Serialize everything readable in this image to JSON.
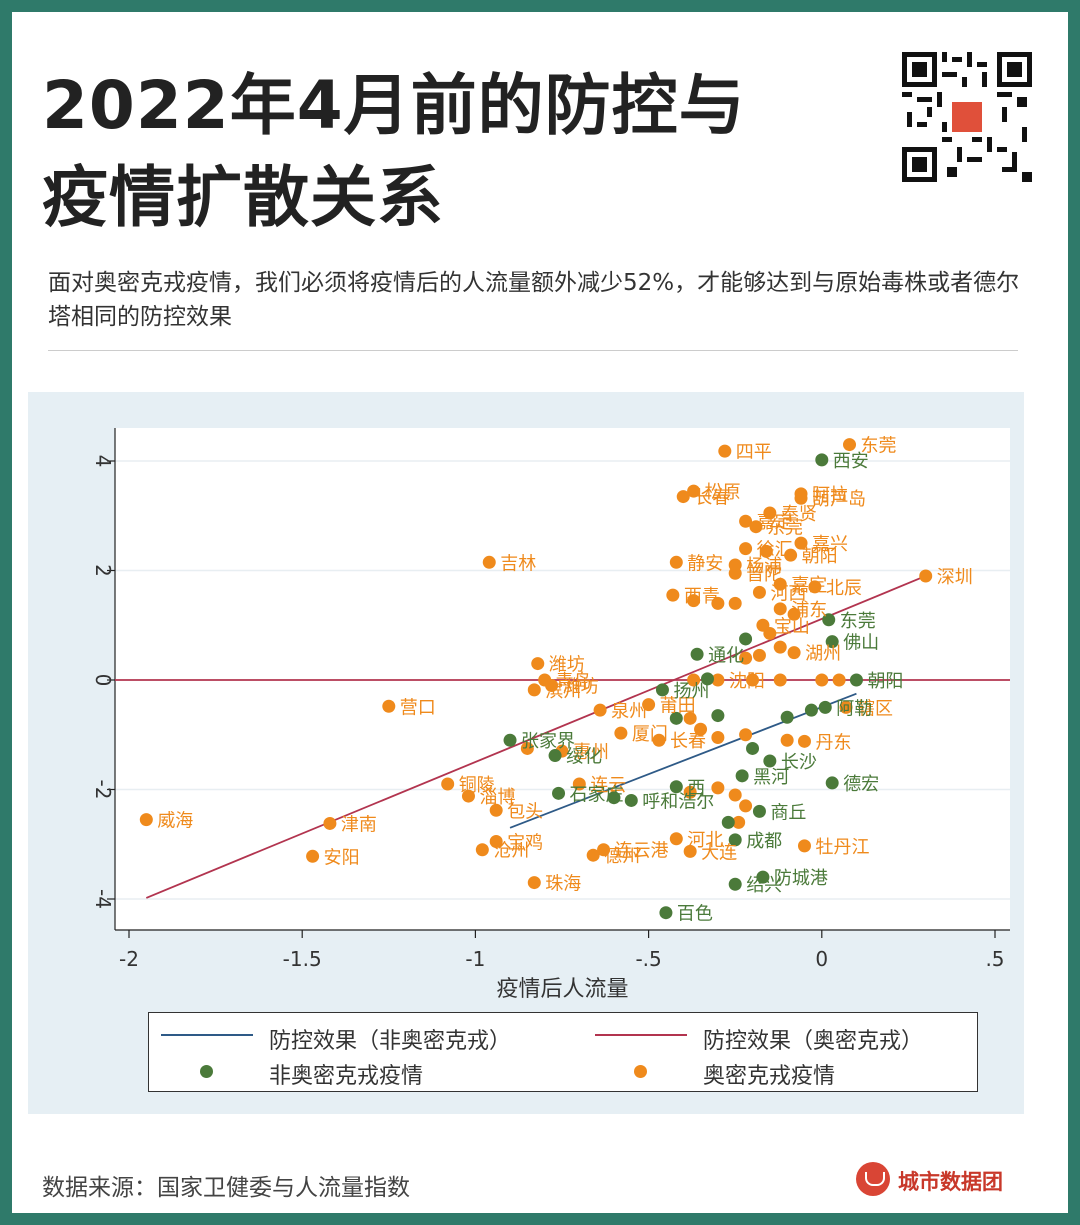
{
  "header": {
    "title_line1": "2022年4月前的防控与",
    "title_line2": "疫情扩散关系",
    "subtitle": "面对奥密克戎疫情，我们必须将疫情后的人流量额外减少52%，才能够达到与原始毒株或者德尔塔相同的防控效果"
  },
  "footer": {
    "source": "数据来源：国家卫健委与人流量指数",
    "brand": "城市数据团"
  },
  "colors": {
    "frame": "#2f7a6a",
    "non_omicron": "#4b7a3a",
    "omicron": "#ef8a1c",
    "line_non_omicron": "#2e5a87",
    "line_omicron": "#b2344f",
    "panel": "#e6eff4"
  },
  "chart_data": {
    "type": "scatter",
    "xlabel": "疫情后人流量",
    "ylabel": "",
    "xlim": [
      -2,
      0.5
    ],
    "ylim": [
      -4.4,
      4.4
    ],
    "xticks": [
      -2,
      -1.5,
      -1,
      -0.5,
      0,
      0.5
    ],
    "xtick_labels": [
      "-2",
      "-1.5",
      "-1",
      "-.5",
      "0",
      ".5"
    ],
    "yticks": [
      -4,
      -2,
      0,
      2,
      4
    ],
    "ytick_labels": [
      "-4",
      "-2",
      "0",
      "2",
      "4"
    ],
    "grid": "horizontal",
    "legend_position": "bottom",
    "reference_line": {
      "y": 0
    },
    "fit_lines": [
      {
        "name": "防控效果（非奥密克戎）",
        "x": [
          -0.9,
          0.1
        ],
        "y": [
          -2.7,
          -0.25
        ]
      },
      {
        "name": "防控效果（奥密克戎）",
        "x": [
          -1.95,
          0.3
        ],
        "y": [
          -3.98,
          1.9
        ]
      }
    ],
    "series": [
      {
        "name": "非奥密克戎疫情",
        "points": [
          {
            "x": 0,
            "y": 4.02,
            "label": "西安"
          },
          {
            "x": 0.02,
            "y": 1.1,
            "label": "东莞"
          },
          {
            "x": 0.03,
            "y": 0.7,
            "label": "佛山"
          },
          {
            "x": -0.22,
            "y": 0.75,
            "label": ""
          },
          {
            "x": -0.36,
            "y": 0.47,
            "label": "通化"
          },
          {
            "x": -0.33,
            "y": 0.02,
            "label": ""
          },
          {
            "x": -0.46,
            "y": -0.18,
            "label": "扬州"
          },
          {
            "x": -0.42,
            "y": -0.7,
            "label": ""
          },
          {
            "x": -0.3,
            "y": -0.65,
            "label": ""
          },
          {
            "x": -0.1,
            "y": -0.68,
            "label": ""
          },
          {
            "x": -0.03,
            "y": -0.55,
            "label": ""
          },
          {
            "x": 0.01,
            "y": -0.5,
            "label": "阿勒"
          },
          {
            "x": 0.1,
            "y": 0.0,
            "label": "朝阳"
          },
          {
            "x": -0.9,
            "y": -1.1,
            "label": "张家界"
          },
          {
            "x": -0.77,
            "y": -1.38,
            "label": "绥化"
          },
          {
            "x": -0.2,
            "y": -1.25,
            "label": ""
          },
          {
            "x": -0.15,
            "y": -1.48,
            "label": "长沙"
          },
          {
            "x": -0.23,
            "y": -1.75,
            "label": "黑河"
          },
          {
            "x": -0.42,
            "y": -1.95,
            "label": "西"
          },
          {
            "x": 0.03,
            "y": -1.88,
            "label": "德宏"
          },
          {
            "x": -0.76,
            "y": -2.07,
            "label": "石家庄"
          },
          {
            "x": -0.6,
            "y": -2.15,
            "label": ""
          },
          {
            "x": -0.55,
            "y": -2.2,
            "label": "呼和浩尔"
          },
          {
            "x": -0.27,
            "y": -2.6,
            "label": ""
          },
          {
            "x": -0.18,
            "y": -2.4,
            "label": "商丘"
          },
          {
            "x": -0.25,
            "y": -2.92,
            "label": "成都"
          },
          {
            "x": -0.17,
            "y": -3.6,
            "label": "防城港"
          },
          {
            "x": -0.25,
            "y": -3.73,
            "label": "绍兴"
          },
          {
            "x": -0.45,
            "y": -4.25,
            "label": "百色"
          }
        ]
      },
      {
        "name": "奥密克戎疫情",
        "points": [
          {
            "x": 0.08,
            "y": 4.3,
            "label": "东莞"
          },
          {
            "x": -0.28,
            "y": 4.18,
            "label": "四平"
          },
          {
            "x": -0.37,
            "y": 3.45,
            "label": "松原"
          },
          {
            "x": -0.4,
            "y": 3.35,
            "label": "长春"
          },
          {
            "x": -0.06,
            "y": 3.4,
            "label": "阿拉"
          },
          {
            "x": -0.06,
            "y": 3.32,
            "label": "葫芦岛"
          },
          {
            "x": -0.15,
            "y": 3.05,
            "label": "奉贤"
          },
          {
            "x": -0.22,
            "y": 2.9,
            "label": "嘉定"
          },
          {
            "x": -0.19,
            "y": 2.8,
            "label": "东莞"
          },
          {
            "x": -0.06,
            "y": 2.5,
            "label": "嘉兴"
          },
          {
            "x": -0.22,
            "y": 2.4,
            "label": "徐汇"
          },
          {
            "x": -0.16,
            "y": 2.35,
            "label": ""
          },
          {
            "x": -0.09,
            "y": 2.28,
            "label": "朝阳"
          },
          {
            "x": -0.42,
            "y": 2.15,
            "label": "静安"
          },
          {
            "x": -0.25,
            "y": 2.1,
            "label": "杨浦"
          },
          {
            "x": -0.25,
            "y": 1.95,
            "label": "普陀"
          },
          {
            "x": -0.12,
            "y": 1.75,
            "label": "嘉定"
          },
          {
            "x": -0.02,
            "y": 1.7,
            "label": "北辰"
          },
          {
            "x": -0.18,
            "y": 1.6,
            "label": "河西"
          },
          {
            "x": -0.43,
            "y": 1.55,
            "label": "西青"
          },
          {
            "x": -0.37,
            "y": 1.45,
            "label": ""
          },
          {
            "x": -0.3,
            "y": 1.4,
            "label": ""
          },
          {
            "x": -0.25,
            "y": 1.4,
            "label": ""
          },
          {
            "x": -0.12,
            "y": 1.3,
            "label": "浦东"
          },
          {
            "x": -0.08,
            "y": 1.2,
            "label": ""
          },
          {
            "x": -0.17,
            "y": 1.0,
            "label": "宝山"
          },
          {
            "x": -0.15,
            "y": 0.85,
            "label": ""
          },
          {
            "x": -0.12,
            "y": 0.6,
            "label": ""
          },
          {
            "x": -0.08,
            "y": 0.5,
            "label": "湖州"
          },
          {
            "x": -0.18,
            "y": 0.45,
            "label": ""
          },
          {
            "x": -0.22,
            "y": 0.4,
            "label": ""
          },
          {
            "x": 0.3,
            "y": 1.9,
            "label": "深圳"
          },
          {
            "x": -0.96,
            "y": 2.15,
            "label": "吉林"
          },
          {
            "x": -0.82,
            "y": 0.3,
            "label": "潍坊"
          },
          {
            "x": -0.8,
            "y": 0.0,
            "label": "青岛"
          },
          {
            "x": -0.78,
            "y": -0.1,
            "label": "潍坊"
          },
          {
            "x": -0.83,
            "y": -0.18,
            "label": "滨州"
          },
          {
            "x": -0.64,
            "y": -0.55,
            "label": "泉州"
          },
          {
            "x": -0.5,
            "y": -0.45,
            "label": "莆田"
          },
          {
            "x": -0.37,
            "y": 0.0,
            "label": ""
          },
          {
            "x": -0.3,
            "y": 0.0,
            "label": "沈阳"
          },
          {
            "x": -0.2,
            "y": 0.0,
            "label": ""
          },
          {
            "x": -0.12,
            "y": 0.0,
            "label": ""
          },
          {
            "x": 0.0,
            "y": 0.0,
            "label": ""
          },
          {
            "x": 0.05,
            "y": 0.0,
            "label": ""
          },
          {
            "x": -1.25,
            "y": -0.48,
            "label": "营口"
          },
          {
            "x": -0.38,
            "y": -0.7,
            "label": ""
          },
          {
            "x": -0.35,
            "y": -0.9,
            "label": ""
          },
          {
            "x": -0.47,
            "y": -1.1,
            "label": "长春"
          },
          {
            "x": -0.58,
            "y": -0.97,
            "label": "厦门"
          },
          {
            "x": -0.3,
            "y": -1.05,
            "label": ""
          },
          {
            "x": -0.22,
            "y": -1.0,
            "label": ""
          },
          {
            "x": -0.1,
            "y": -1.1,
            "label": ""
          },
          {
            "x": -0.05,
            "y": -1.12,
            "label": "丹东"
          },
          {
            "x": 0.07,
            "y": -0.5,
            "label": "辖区"
          },
          {
            "x": -0.85,
            "y": -1.25,
            "label": ""
          },
          {
            "x": -0.75,
            "y": -1.3,
            "label": "惠州"
          },
          {
            "x": -1.08,
            "y": -1.9,
            "label": "铜陵"
          },
          {
            "x": -1.02,
            "y": -2.12,
            "label": "淄博"
          },
          {
            "x": -0.94,
            "y": -2.38,
            "label": "包头"
          },
          {
            "x": -0.7,
            "y": -1.9,
            "label": "连云"
          },
          {
            "x": -0.38,
            "y": -2.05,
            "label": ""
          },
          {
            "x": -0.3,
            "y": -1.97,
            "label": ""
          },
          {
            "x": -0.25,
            "y": -2.1,
            "label": ""
          },
          {
            "x": -0.22,
            "y": -2.3,
            "label": ""
          },
          {
            "x": -0.24,
            "y": -2.6,
            "label": ""
          },
          {
            "x": -1.95,
            "y": -2.55,
            "label": "威海"
          },
          {
            "x": -1.42,
            "y": -2.62,
            "label": "津南"
          },
          {
            "x": -1.47,
            "y": -3.22,
            "label": "安阳"
          },
          {
            "x": -0.94,
            "y": -2.95,
            "label": "宝鸡"
          },
          {
            "x": -0.98,
            "y": -3.1,
            "label": "沧州"
          },
          {
            "x": -0.63,
            "y": -3.1,
            "label": "连云港"
          },
          {
            "x": -0.66,
            "y": -3.2,
            "label": "德州"
          },
          {
            "x": -0.42,
            "y": -2.9,
            "label": "河北"
          },
          {
            "x": -0.38,
            "y": -3.13,
            "label": "大连"
          },
          {
            "x": -0.05,
            "y": -3.03,
            "label": "牡丹江"
          },
          {
            "x": -0.83,
            "y": -3.7,
            "label": "珠海"
          }
        ]
      }
    ]
  },
  "legend": [
    {
      "label": "防控效果（非奥密克戎）",
      "kind": "line",
      "color": "#2e5a87"
    },
    {
      "label": "防控效果（奥密克戎）",
      "kind": "line",
      "color": "#b2344f"
    },
    {
      "label": "非奥密克戎疫情",
      "kind": "dot",
      "color": "#4b7a3a"
    },
    {
      "label": "奥密克戎疫情",
      "kind": "dot",
      "color": "#ef8a1c"
    }
  ]
}
